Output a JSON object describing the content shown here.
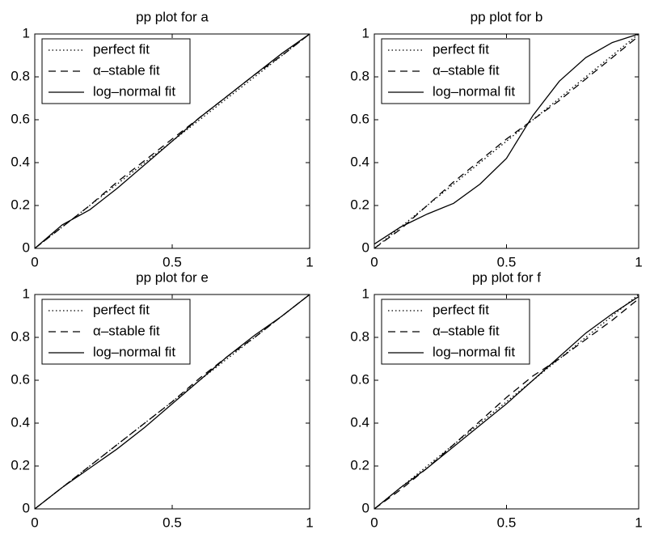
{
  "chart_data": [
    {
      "type": "line",
      "title": "pp plot for a",
      "x": [
        0,
        0.1,
        0.2,
        0.3,
        0.4,
        0.5,
        0.6,
        0.7,
        0.8,
        0.9,
        1
      ],
      "series": [
        {
          "name": "perfect fit",
          "color": "#000000",
          "dash": "dotted",
          "values": [
            0,
            0.1,
            0.2,
            0.3,
            0.4,
            0.5,
            0.6,
            0.7,
            0.8,
            0.9,
            1
          ]
        },
        {
          "name": "α–stable fit",
          "color": "#000000",
          "dash": "dashed",
          "values": [
            0,
            0.1,
            0.2,
            0.31,
            0.41,
            0.51,
            0.61,
            0.71,
            0.81,
            0.9,
            1
          ]
        },
        {
          "name": "log–normal fit",
          "color": "#000000",
          "dash": "solid",
          "values": [
            0,
            0.11,
            0.18,
            0.28,
            0.39,
            0.5,
            0.61,
            0.71,
            0.81,
            0.91,
            1
          ]
        }
      ],
      "xlim": [
        0,
        1
      ],
      "ylim": [
        0,
        1
      ],
      "xticks": [
        0,
        0.5,
        1
      ],
      "yticks": [
        0,
        0.2,
        0.4,
        0.6,
        0.8,
        1
      ],
      "legend": "upper-left"
    },
    {
      "type": "line",
      "title": "pp plot for b",
      "x": [
        0,
        0.1,
        0.2,
        0.3,
        0.4,
        0.5,
        0.6,
        0.7,
        0.8,
        0.9,
        1
      ],
      "series": [
        {
          "name": "perfect fit",
          "color": "#000000",
          "dash": "dotted",
          "values": [
            0,
            0.1,
            0.2,
            0.3,
            0.4,
            0.5,
            0.6,
            0.7,
            0.8,
            0.9,
            1
          ]
        },
        {
          "name": "α–stable fit",
          "color": "#000000",
          "dash": "dashed",
          "values": [
            0,
            0.09,
            0.2,
            0.31,
            0.41,
            0.51,
            0.6,
            0.69,
            0.79,
            0.89,
            0.99
          ]
        },
        {
          "name": "log–normal fit",
          "color": "#000000",
          "dash": "solid",
          "values": [
            0.02,
            0.1,
            0.16,
            0.21,
            0.3,
            0.42,
            0.62,
            0.78,
            0.89,
            0.96,
            1
          ]
        }
      ],
      "xlim": [
        0,
        1
      ],
      "ylim": [
        0,
        1
      ],
      "xticks": [
        0,
        0.5,
        1
      ],
      "yticks": [
        0,
        0.2,
        0.4,
        0.6,
        0.8,
        1
      ],
      "legend": "upper-left"
    },
    {
      "type": "line",
      "title": "pp plot for e",
      "x": [
        0,
        0.1,
        0.2,
        0.3,
        0.4,
        0.5,
        0.6,
        0.7,
        0.8,
        0.9,
        1
      ],
      "series": [
        {
          "name": "perfect fit",
          "color": "#000000",
          "dash": "dotted",
          "values": [
            0,
            0.1,
            0.2,
            0.3,
            0.4,
            0.5,
            0.6,
            0.7,
            0.8,
            0.9,
            1
          ]
        },
        {
          "name": "α–stable fit",
          "color": "#000000",
          "dash": "dashed",
          "values": [
            0,
            0.1,
            0.2,
            0.3,
            0.4,
            0.5,
            0.61,
            0.71,
            0.8,
            0.9,
            1
          ]
        },
        {
          "name": "log–normal fit",
          "color": "#000000",
          "dash": "solid",
          "values": [
            0,
            0.1,
            0.19,
            0.28,
            0.38,
            0.49,
            0.6,
            0.71,
            0.81,
            0.9,
            1
          ]
        }
      ],
      "xlim": [
        0,
        1
      ],
      "ylim": [
        0,
        1
      ],
      "xticks": [
        0,
        0.5,
        1
      ],
      "yticks": [
        0,
        0.2,
        0.4,
        0.6,
        0.8,
        1
      ],
      "legend": "upper-left"
    },
    {
      "type": "line",
      "title": "pp plot for f",
      "x": [
        0,
        0.1,
        0.2,
        0.3,
        0.4,
        0.5,
        0.6,
        0.7,
        0.8,
        0.9,
        1
      ],
      "series": [
        {
          "name": "perfect fit",
          "color": "#000000",
          "dash": "dotted",
          "values": [
            0,
            0.1,
            0.2,
            0.3,
            0.4,
            0.5,
            0.6,
            0.7,
            0.8,
            0.9,
            1
          ]
        },
        {
          "name": "α–stable fit",
          "color": "#000000",
          "dash": "dashed",
          "values": [
            0,
            0.09,
            0.19,
            0.3,
            0.41,
            0.52,
            0.62,
            0.7,
            0.79,
            0.88,
            0.98
          ]
        },
        {
          "name": "log–normal fit",
          "color": "#000000",
          "dash": "solid",
          "values": [
            0,
            0.1,
            0.19,
            0.29,
            0.39,
            0.49,
            0.6,
            0.71,
            0.82,
            0.91,
            0.99
          ]
        }
      ],
      "xlim": [
        0,
        1
      ],
      "ylim": [
        0,
        1
      ],
      "xticks": [
        0,
        0.5,
        1
      ],
      "yticks": [
        0,
        0.2,
        0.4,
        0.6,
        0.8,
        1
      ],
      "legend": "upper-left"
    }
  ]
}
